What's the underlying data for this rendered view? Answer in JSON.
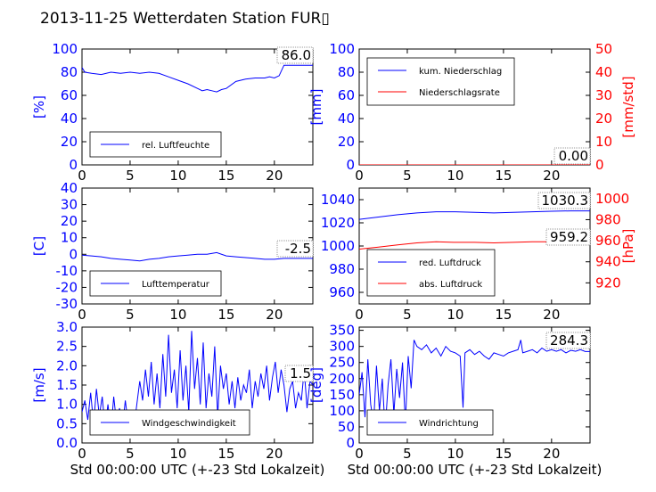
{
  "title": "2013-11-25 Wetterdaten Station FUR▯",
  "colors": {
    "blue": "#0000ff",
    "red": "#ff0000",
    "axis": "#000000"
  },
  "chart_data": [
    {
      "id": "humidity",
      "type": "line",
      "xlim": [
        0,
        24
      ],
      "ylim": [
        0,
        100
      ],
      "xticks": [
        0,
        5,
        10,
        15,
        20
      ],
      "yticks": [
        0,
        20,
        40,
        60,
        80,
        100
      ],
      "ylabel": "[%]",
      "ylabel_color": "blue",
      "last_value": "86.0",
      "legend": [
        "rel. Luftfeuchte"
      ],
      "legend_loc": "lower-left",
      "series": [
        {
          "name": "rel. Luftfeuchte",
          "color": "blue",
          "x": [
            0,
            0.3,
            1,
            2,
            3,
            4,
            5,
            6,
            7,
            8,
            9,
            10,
            11,
            12,
            12.5,
            13,
            13.5,
            14,
            14.5,
            15,
            16,
            17,
            18,
            19,
            19.5,
            20,
            20.5,
            21,
            22,
            23,
            24
          ],
          "y": [
            84,
            80,
            79,
            78,
            80,
            79,
            80,
            79,
            80,
            79,
            76,
            73,
            70,
            66,
            64,
            65,
            64,
            63,
            65,
            66,
            72,
            74,
            75,
            75,
            76,
            75,
            77,
            86,
            86,
            86,
            86
          ]
        }
      ]
    },
    {
      "id": "precip",
      "type": "line",
      "xlim": [
        0,
        24
      ],
      "ylim": [
        0,
        100
      ],
      "y2lim": [
        0,
        50
      ],
      "xticks": [
        0,
        5,
        10,
        15,
        20
      ],
      "yticks": [
        0,
        20,
        40,
        60,
        80,
        100
      ],
      "y2ticks": [
        0,
        10,
        20,
        30,
        40,
        50
      ],
      "ylabel": "[mm]",
      "y2label": "[mm/std]",
      "last_value": "0.00",
      "legend": [
        "kum. Niederschlag",
        "Niederschlagsrate"
      ],
      "legend_loc": "upper-left",
      "series": [
        {
          "name": "kum. Niederschlag",
          "color": "blue",
          "axis": "left",
          "x": [
            0,
            24
          ],
          "y": [
            0,
            0
          ]
        },
        {
          "name": "Niederschlagsrate",
          "color": "red",
          "axis": "right",
          "x": [
            0,
            24
          ],
          "y": [
            0,
            0
          ]
        }
      ]
    },
    {
      "id": "temperature",
      "type": "line",
      "xlim": [
        0,
        24
      ],
      "ylim": [
        -30,
        40
      ],
      "xticks": [
        0,
        5,
        10,
        15,
        20
      ],
      "yticks": [
        -30,
        -20,
        -10,
        0,
        10,
        20,
        30,
        40
      ],
      "ylabel": "[C]",
      "last_value": "-2.5",
      "legend": [
        "Lufttemperatur"
      ],
      "legend_loc": "lower-left",
      "series": [
        {
          "name": "Lufttemperatur",
          "color": "blue",
          "x": [
            0,
            1,
            2,
            3,
            4,
            5,
            6,
            7,
            8,
            9,
            10,
            11,
            12,
            13,
            14,
            15,
            16,
            17,
            18,
            19,
            20,
            21,
            22,
            23,
            24
          ],
          "y": [
            -0.5,
            -1,
            -1.5,
            -2.5,
            -3,
            -3.5,
            -4,
            -3,
            -2.5,
            -1.5,
            -1,
            -0.5,
            0,
            0,
            1,
            -1,
            -1.5,
            -2,
            -2.5,
            -3,
            -3,
            -2.5,
            -2.5,
            -2.5,
            -2.5
          ]
        }
      ]
    },
    {
      "id": "pressure",
      "type": "line",
      "xlim": [
        0,
        24
      ],
      "ylim": [
        950,
        1050
      ],
      "y2lim": [
        900,
        1010
      ],
      "xticks": [
        0,
        5,
        10,
        15,
        20
      ],
      "yticks": [
        960,
        980,
        1000,
        1020,
        1040
      ],
      "y2ticks": [
        920,
        940,
        960,
        980,
        1000
      ],
      "y2label": "[hPa]",
      "last_values": [
        "1030.3",
        "959.2"
      ],
      "legend": [
        "red. Luftdruck",
        "abs. Luftdruck"
      ],
      "legend_loc": "lower-left",
      "series": [
        {
          "name": "red. Luftdruck",
          "color": "blue",
          "axis": "left",
          "x": [
            0,
            2,
            4,
            6,
            8,
            10,
            12,
            14,
            16,
            18,
            20,
            22,
            24
          ],
          "y": [
            1023,
            1025,
            1027,
            1028.5,
            1029.5,
            1029.5,
            1029,
            1028.5,
            1029,
            1029.5,
            1030,
            1030.3,
            1030.3
          ]
        },
        {
          "name": "abs. Luftdruck",
          "color": "red",
          "axis": "right",
          "x": [
            0,
            2,
            4,
            6,
            8,
            10,
            12,
            14,
            16,
            18,
            20,
            22,
            24
          ],
          "y": [
            952,
            954,
            956,
            958,
            959,
            958.5,
            958.5,
            958,
            958.5,
            959,
            959,
            959.2,
            959.2
          ]
        }
      ]
    },
    {
      "id": "windspeed",
      "type": "line",
      "xlim": [
        0,
        24
      ],
      "ylim": [
        0,
        3
      ],
      "xticks": [
        0,
        5,
        10,
        15,
        20
      ],
      "yticks": [
        0,
        0.5,
        1.0,
        1.5,
        2.0,
        2.5,
        3.0
      ],
      "ytick_labels": [
        "0.0",
        "0.5",
        "1.0",
        "1.5",
        "2.0",
        "2.5",
        "3.0"
      ],
      "ylabel": "[m/s]",
      "xlabel": "Std 00:00:00 UTC (+-23 Std Lokalzeit)",
      "last_value": "1.5",
      "legend": [
        "Windgeschwindigkeit"
      ],
      "legend_loc": "lower-left",
      "series": [
        {
          "name": "Windgeschwindigkeit",
          "color": "blue",
          "x": [
            0,
            0.3,
            0.6,
            0.9,
            1.2,
            1.5,
            1.8,
            2.1,
            2.4,
            2.7,
            3.0,
            3.3,
            3.6,
            3.9,
            4.2,
            4.5,
            4.8,
            5.1,
            5.4,
            5.7,
            6.0,
            6.3,
            6.6,
            6.9,
            7.2,
            7.5,
            7.8,
            8.1,
            8.4,
            8.7,
            9.0,
            9.3,
            9.6,
            9.9,
            10.2,
            10.5,
            10.8,
            11.1,
            11.4,
            11.7,
            12.0,
            12.3,
            12.6,
            12.9,
            13.2,
            13.5,
            13.8,
            14.1,
            14.4,
            14.7,
            15.0,
            15.3,
            15.6,
            15.9,
            16.2,
            16.5,
            16.8,
            17.1,
            17.4,
            17.7,
            18.0,
            18.3,
            18.6,
            18.9,
            19.2,
            19.5,
            19.8,
            20.1,
            20.4,
            20.7,
            21.0,
            21.3,
            21.6,
            21.9,
            22.2,
            22.5,
            22.8,
            23.1,
            23.4,
            23.7,
            24.0
          ],
          "y": [
            0.8,
            1.1,
            0.6,
            1.3,
            0.5,
            1.4,
            0.7,
            1.2,
            0.4,
            1.0,
            0.3,
            1.2,
            0.5,
            0.9,
            0.4,
            1.1,
            0.5,
            0.8,
            0.4,
            1.0,
            1.6,
            1.1,
            1.9,
            1.2,
            2.1,
            1.0,
            1.8,
            0.9,
            2.3,
            1.2,
            2.8,
            1.3,
            1.9,
            0.9,
            2.4,
            1.1,
            2.0,
            0.8,
            2.9,
            1.4,
            2.2,
            1.0,
            2.6,
            0.9,
            1.8,
            1.2,
            2.5,
            0.7,
            2.0,
            1.4,
            1.8,
            1.0,
            1.6,
            0.9,
            1.7,
            1.1,
            1.5,
            1.3,
            1.9,
            0.9,
            1.6,
            1.2,
            1.8,
            1.4,
            2.0,
            1.1,
            1.7,
            2.1,
            1.3,
            1.9,
            1.5,
            0.8,
            1.4,
            1.6,
            0.9,
            1.3,
            1.1,
            1.9,
            0.9,
            1.6,
            1.5
          ]
        }
      ]
    },
    {
      "id": "winddir",
      "type": "line",
      "xlim": [
        0,
        24
      ],
      "ylim": [
        0,
        360
      ],
      "xticks": [
        0,
        5,
        10,
        15,
        20
      ],
      "yticks": [
        0,
        50,
        100,
        150,
        200,
        250,
        300,
        350
      ],
      "ylabel": "[deg]",
      "xlabel": "Std 00:00:00 UTC (+-23 Std Lokalzeit)",
      "last_value": "284.3",
      "legend": [
        "Windrichtung"
      ],
      "legend_loc": "lower-left",
      "series": [
        {
          "name": "Windrichtung",
          "color": "blue",
          "x": [
            0,
            0.3,
            0.6,
            0.9,
            1.2,
            1.5,
            1.8,
            2.1,
            2.4,
            2.7,
            3.0,
            3.3,
            3.6,
            3.9,
            4.2,
            4.5,
            4.8,
            5.1,
            5.4,
            5.7,
            6.0,
            6.5,
            7.0,
            7.5,
            8.0,
            8.5,
            9.0,
            9.5,
            10.0,
            10.5,
            10.8,
            11.0,
            11.5,
            12.0,
            12.5,
            13.0,
            13.5,
            14.0,
            14.5,
            15.0,
            15.5,
            16.0,
            16.5,
            16.8,
            17.0,
            17.5,
            18.0,
            18.5,
            19.0,
            19.5,
            20.0,
            20.5,
            21.0,
            21.5,
            22.0,
            22.5,
            23.0,
            23.5,
            24.0
          ],
          "y": [
            150,
            220,
            80,
            260,
            120,
            60,
            240,
            100,
            200,
            40,
            180,
            260,
            90,
            230,
            140,
            250,
            60,
            270,
            170,
            320,
            300,
            290,
            305,
            280,
            295,
            270,
            300,
            285,
            280,
            270,
            110,
            280,
            290,
            275,
            285,
            270,
            260,
            280,
            275,
            270,
            280,
            285,
            290,
            320,
            280,
            285,
            290,
            280,
            295,
            285,
            290,
            285,
            290,
            280,
            288,
            285,
            290,
            284,
            284
          ]
        }
      ]
    }
  ]
}
